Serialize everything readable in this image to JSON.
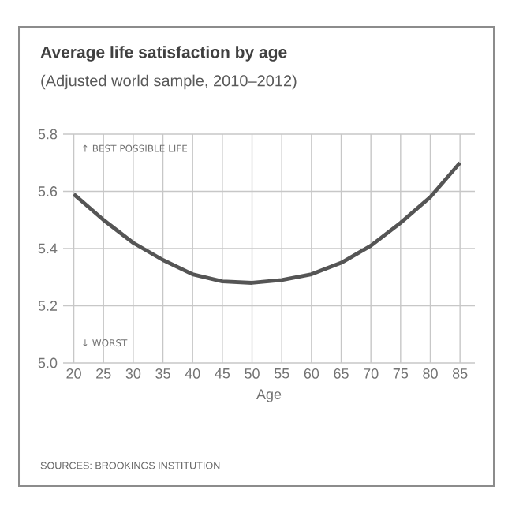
{
  "chart_data": {
    "type": "line",
    "title": "Average life satisfaction by age",
    "subtitle": "(Adjusted world sample, 2010–2012)",
    "xlabel": "Age",
    "x": [
      20,
      25,
      30,
      35,
      40,
      45,
      50,
      55,
      60,
      65,
      70,
      75,
      80,
      85
    ],
    "series": [
      {
        "color": "#555555",
        "values": [
          5.59,
          5.5,
          5.42,
          5.36,
          5.31,
          5.285,
          5.28,
          5.29,
          5.31,
          5.35,
          5.41,
          5.49,
          5.58,
          5.7
        ]
      }
    ],
    "xlim": [
      18.2,
      87.5
    ],
    "xticks": [
      20,
      25,
      30,
      35,
      40,
      45,
      50,
      55,
      60,
      65,
      70,
      75,
      80,
      85
    ],
    "ylim": [
      5.0,
      5.8
    ],
    "yticks": [
      {
        "value": 5.0,
        "label": "5.0"
      },
      {
        "value": 5.2,
        "label": "5.2"
      },
      {
        "value": 5.4,
        "label": "5.4"
      },
      {
        "value": 5.6,
        "label": "5.6"
      },
      {
        "value": 5.8,
        "label": "5.8"
      }
    ],
    "grid": true,
    "marker": "none",
    "line_style": "solid",
    "annotations": [
      "↑ BEST POSSIBLE LIFE",
      "↓ WORST",
      "SOURCES: BROOKINGS INSTITUTION"
    ]
  }
}
